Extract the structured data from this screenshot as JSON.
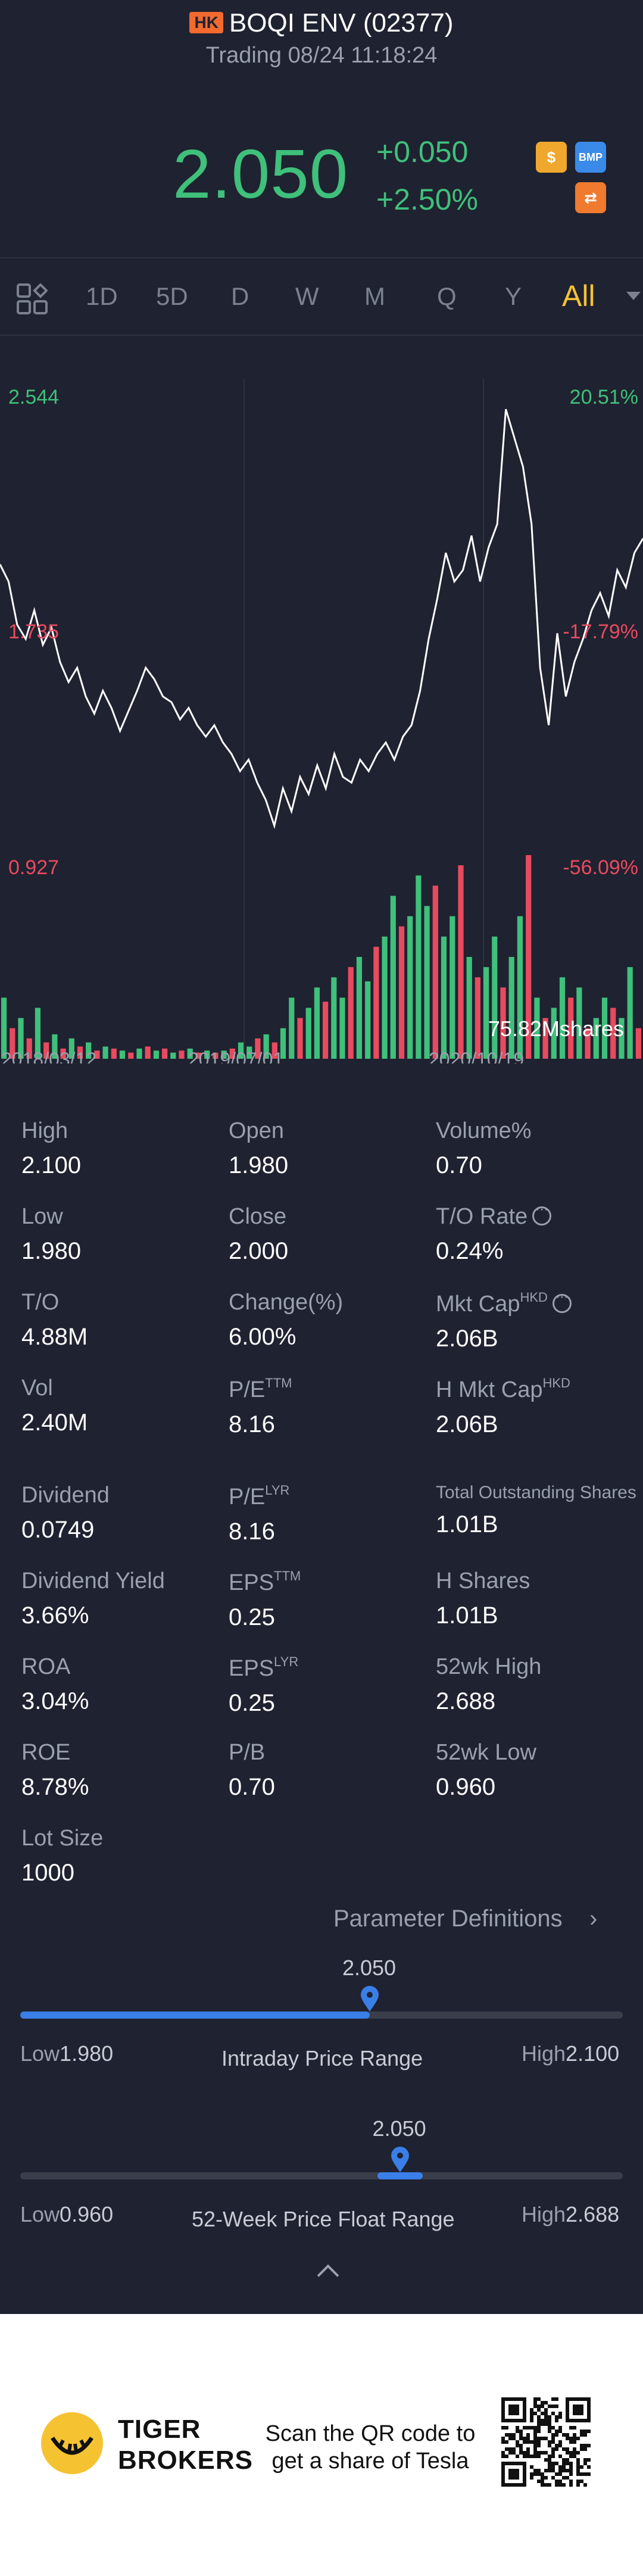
{
  "header": {
    "market_badge": "HK",
    "stock_name": "BOQI ENV (02377)",
    "trading_status": "Trading 08/24 11:18:24",
    "price": "2.050",
    "change": "+0.050",
    "change_pct": "+2.50%",
    "badges": [
      "$",
      "BMP",
      "⇄"
    ],
    "colors": {
      "up": "#3fc07b",
      "down": "#e84a5f",
      "accent": "#f5c332",
      "bg": "#1f2230"
    }
  },
  "tabs": {
    "icon": "grid-settings-icon",
    "items": [
      "1D",
      "5D",
      "D",
      "W",
      "M",
      "Q",
      "Y",
      "All"
    ],
    "active": "All"
  },
  "chart_data": {
    "type": "line",
    "price_axis_labels": {
      "top": "2.544",
      "mid": "1.735",
      "bottom": "0.927"
    },
    "pct_axis_labels": {
      "top": "20.51%",
      "mid": "-17.79%",
      "bottom": "-56.09%"
    },
    "x_tick_labels": [
      "2018/03/12",
      "2019/07/01",
      "2020/10/19"
    ],
    "volume_label": "75.82Mshares",
    "ylim": [
      0.927,
      2.544
    ],
    "price_series": [
      1.96,
      1.9,
      1.75,
      1.7,
      1.8,
      1.68,
      1.74,
      1.62,
      1.55,
      1.6,
      1.5,
      1.44,
      1.52,
      1.46,
      1.38,
      1.45,
      1.52,
      1.6,
      1.56,
      1.5,
      1.48,
      1.42,
      1.46,
      1.4,
      1.36,
      1.4,
      1.34,
      1.3,
      1.24,
      1.28,
      1.2,
      1.14,
      1.05,
      1.18,
      1.1,
      1.22,
      1.16,
      1.26,
      1.18,
      1.3,
      1.22,
      1.2,
      1.28,
      1.24,
      1.3,
      1.34,
      1.28,
      1.36,
      1.4,
      1.52,
      1.7,
      1.84,
      2.0,
      1.9,
      1.94,
      2.06,
      1.9,
      2.02,
      2.1,
      2.5,
      2.4,
      2.3,
      2.1,
      1.6,
      1.4,
      1.72,
      1.5,
      1.62,
      1.7,
      1.8,
      1.86,
      1.78,
      1.94,
      1.88,
      2.0,
      2.05
    ],
    "volume_series": [
      0.3,
      0.15,
      0.2,
      0.1,
      0.25,
      0.08,
      0.12,
      0.05,
      0.1,
      0.06,
      0.08,
      0.04,
      0.06,
      0.05,
      0.04,
      0.03,
      0.05,
      0.06,
      0.04,
      0.05,
      0.03,
      0.04,
      0.05,
      0.03,
      0.04,
      0.03,
      0.04,
      0.05,
      0.08,
      0.06,
      0.1,
      0.12,
      0.08,
      0.15,
      0.3,
      0.2,
      0.25,
      0.35,
      0.28,
      0.4,
      0.3,
      0.45,
      0.5,
      0.38,
      0.55,
      0.6,
      0.8,
      0.65,
      0.7,
      0.9,
      0.75,
      0.85,
      0.6,
      0.7,
      0.95,
      0.5,
      0.4,
      0.45,
      0.6,
      0.35,
      0.5,
      0.7,
      1.0,
      0.3,
      0.2,
      0.25,
      0.4,
      0.3,
      0.35,
      0.15,
      0.2,
      0.3,
      0.25,
      0.2,
      0.45,
      0.15
    ],
    "volume_up": [
      1,
      0,
      1,
      0,
      1,
      0,
      1,
      0,
      1,
      0,
      1,
      0,
      1,
      0,
      1,
      0,
      1,
      0,
      1,
      0,
      1,
      0,
      1,
      0,
      1,
      0,
      1,
      0,
      1,
      1,
      0,
      1,
      0,
      1,
      1,
      0,
      1,
      1,
      0,
      1,
      1,
      0,
      1,
      1,
      0,
      1,
      1,
      0,
      1,
      1,
      1,
      0,
      1,
      1,
      0,
      1,
      0,
      1,
      1,
      0,
      1,
      1,
      0,
      1,
      0,
      1,
      1,
      0,
      1,
      0,
      1,
      1,
      0,
      1,
      1,
      0
    ]
  },
  "stats": {
    "high": {
      "label": "High",
      "value": "2.100"
    },
    "open": {
      "label": "Open",
      "value": "1.980"
    },
    "volume_pct": {
      "label": "Volume%",
      "value": "0.70"
    },
    "low": {
      "label": "Low",
      "value": "1.980"
    },
    "close": {
      "label": "Close",
      "value": "2.000"
    },
    "to_rate": {
      "label": "T/O Rate",
      "value": "0.24%"
    },
    "to": {
      "label": "T/O",
      "value": "4.88M"
    },
    "change_pct": {
      "label": "Change(%)",
      "value": "6.00%"
    },
    "mkt_cap": {
      "label": "Mkt Cap",
      "sup": "HKD",
      "value": "2.06B"
    },
    "vol": {
      "label": "Vol",
      "value": "2.40M"
    },
    "pe_ttm": {
      "label": "P/E",
      "sup": "TTM",
      "value": "8.16"
    },
    "h_mkt_cap": {
      "label": "H Mkt Cap",
      "sup": "HKD",
      "value": "2.06B"
    },
    "dividend": {
      "label": "Dividend",
      "value": "0.0749"
    },
    "pe_lyr": {
      "label": "P/E",
      "sup": "LYR",
      "value": "8.16"
    },
    "total_shares": {
      "label": "Total Outstanding Shares",
      "value": "1.01B"
    },
    "div_yield": {
      "label": "Dividend Yield",
      "value": "3.66%"
    },
    "eps_ttm": {
      "label": "EPS",
      "sup": "TTM",
      "value": "0.25"
    },
    "h_shares": {
      "label": "H Shares",
      "value": "1.01B"
    },
    "roa": {
      "label": "ROA",
      "value": "3.04%"
    },
    "eps_lyr": {
      "label": "EPS",
      "sup": "LYR",
      "value": "0.25"
    },
    "wk52_high": {
      "label": "52wk High",
      "value": "2.688"
    },
    "roe": {
      "label": "ROE",
      "value": "8.78%"
    },
    "pb": {
      "label": "P/B",
      "value": "0.70"
    },
    "wk52_low": {
      "label": "52wk Low",
      "value": "0.960"
    },
    "lot_size": {
      "label": "Lot Size",
      "value": "1000"
    }
  },
  "param_def": "Parameter Definitions",
  "intraday_range": {
    "current": "2.050",
    "title": "Intraday Price Range",
    "low_label": "Low",
    "low": "1.980",
    "high_label": "High",
    "high": "2.100",
    "position": 0.58
  },
  "week52_range": {
    "current": "2.050",
    "title": "52-Week Price Float Range",
    "low_label": "Low",
    "low": "0.960",
    "high_label": "High",
    "high": "2.688",
    "position": 0.63
  },
  "footer": {
    "brand_line1": "TIGER",
    "brand_line2": "BROKERS",
    "scan_line1": "Scan the QR code to",
    "scan_line2": "get a share of Tesla"
  }
}
